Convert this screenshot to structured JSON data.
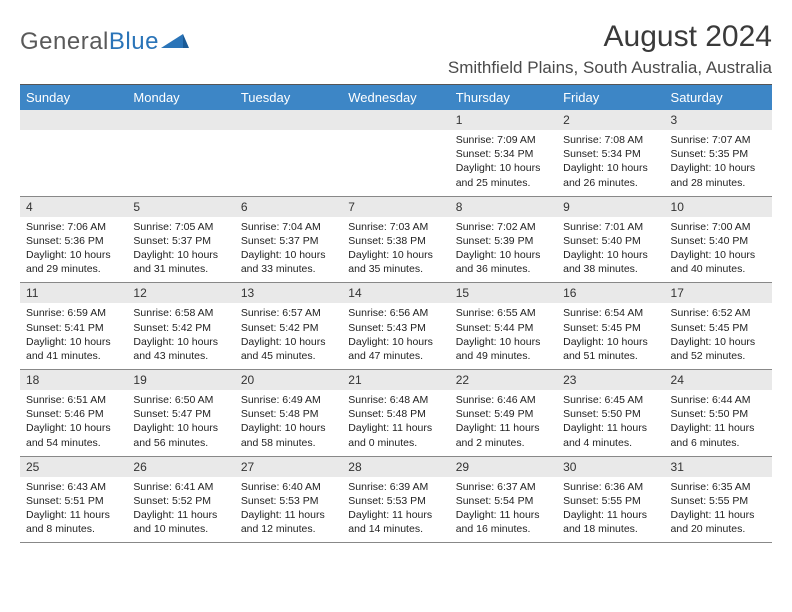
{
  "logo": {
    "text1": "General",
    "text2": "Blue"
  },
  "title": "August 2024",
  "location": "Smithfield Plains, South Australia, Australia",
  "colors": {
    "header_bg": "#3d86c6",
    "header_text": "#ffffff",
    "daynum_bg": "#e9e9e9",
    "text": "#333333",
    "logo_blue": "#2a74b8"
  },
  "day_headers": [
    "Sunday",
    "Monday",
    "Tuesday",
    "Wednesday",
    "Thursday",
    "Friday",
    "Saturday"
  ],
  "weeks": [
    [
      null,
      null,
      null,
      null,
      {
        "n": "1",
        "sr": "7:09 AM",
        "ss": "5:34 PM",
        "dh": "10",
        "dm": "25"
      },
      {
        "n": "2",
        "sr": "7:08 AM",
        "ss": "5:34 PM",
        "dh": "10",
        "dm": "26"
      },
      {
        "n": "3",
        "sr": "7:07 AM",
        "ss": "5:35 PM",
        "dh": "10",
        "dm": "28"
      }
    ],
    [
      {
        "n": "4",
        "sr": "7:06 AM",
        "ss": "5:36 PM",
        "dh": "10",
        "dm": "29"
      },
      {
        "n": "5",
        "sr": "7:05 AM",
        "ss": "5:37 PM",
        "dh": "10",
        "dm": "31"
      },
      {
        "n": "6",
        "sr": "7:04 AM",
        "ss": "5:37 PM",
        "dh": "10",
        "dm": "33"
      },
      {
        "n": "7",
        "sr": "7:03 AM",
        "ss": "5:38 PM",
        "dh": "10",
        "dm": "35"
      },
      {
        "n": "8",
        "sr": "7:02 AM",
        "ss": "5:39 PM",
        "dh": "10",
        "dm": "36"
      },
      {
        "n": "9",
        "sr": "7:01 AM",
        "ss": "5:40 PM",
        "dh": "10",
        "dm": "38"
      },
      {
        "n": "10",
        "sr": "7:00 AM",
        "ss": "5:40 PM",
        "dh": "10",
        "dm": "40"
      }
    ],
    [
      {
        "n": "11",
        "sr": "6:59 AM",
        "ss": "5:41 PM",
        "dh": "10",
        "dm": "41"
      },
      {
        "n": "12",
        "sr": "6:58 AM",
        "ss": "5:42 PM",
        "dh": "10",
        "dm": "43"
      },
      {
        "n": "13",
        "sr": "6:57 AM",
        "ss": "5:42 PM",
        "dh": "10",
        "dm": "45"
      },
      {
        "n": "14",
        "sr": "6:56 AM",
        "ss": "5:43 PM",
        "dh": "10",
        "dm": "47"
      },
      {
        "n": "15",
        "sr": "6:55 AM",
        "ss": "5:44 PM",
        "dh": "10",
        "dm": "49"
      },
      {
        "n": "16",
        "sr": "6:54 AM",
        "ss": "5:45 PM",
        "dh": "10",
        "dm": "51"
      },
      {
        "n": "17",
        "sr": "6:52 AM",
        "ss": "5:45 PM",
        "dh": "10",
        "dm": "52"
      }
    ],
    [
      {
        "n": "18",
        "sr": "6:51 AM",
        "ss": "5:46 PM",
        "dh": "10",
        "dm": "54"
      },
      {
        "n": "19",
        "sr": "6:50 AM",
        "ss": "5:47 PM",
        "dh": "10",
        "dm": "56"
      },
      {
        "n": "20",
        "sr": "6:49 AM",
        "ss": "5:48 PM",
        "dh": "10",
        "dm": "58"
      },
      {
        "n": "21",
        "sr": "6:48 AM",
        "ss": "5:48 PM",
        "dh": "11",
        "dm": "0"
      },
      {
        "n": "22",
        "sr": "6:46 AM",
        "ss": "5:49 PM",
        "dh": "11",
        "dm": "2"
      },
      {
        "n": "23",
        "sr": "6:45 AM",
        "ss": "5:50 PM",
        "dh": "11",
        "dm": "4"
      },
      {
        "n": "24",
        "sr": "6:44 AM",
        "ss": "5:50 PM",
        "dh": "11",
        "dm": "6"
      }
    ],
    [
      {
        "n": "25",
        "sr": "6:43 AM",
        "ss": "5:51 PM",
        "dh": "11",
        "dm": "8"
      },
      {
        "n": "26",
        "sr": "6:41 AM",
        "ss": "5:52 PM",
        "dh": "11",
        "dm": "10"
      },
      {
        "n": "27",
        "sr": "6:40 AM",
        "ss": "5:53 PM",
        "dh": "11",
        "dm": "12"
      },
      {
        "n": "28",
        "sr": "6:39 AM",
        "ss": "5:53 PM",
        "dh": "11",
        "dm": "14"
      },
      {
        "n": "29",
        "sr": "6:37 AM",
        "ss": "5:54 PM",
        "dh": "11",
        "dm": "16"
      },
      {
        "n": "30",
        "sr": "6:36 AM",
        "ss": "5:55 PM",
        "dh": "11",
        "dm": "18"
      },
      {
        "n": "31",
        "sr": "6:35 AM",
        "ss": "5:55 PM",
        "dh": "11",
        "dm": "20"
      }
    ]
  ]
}
